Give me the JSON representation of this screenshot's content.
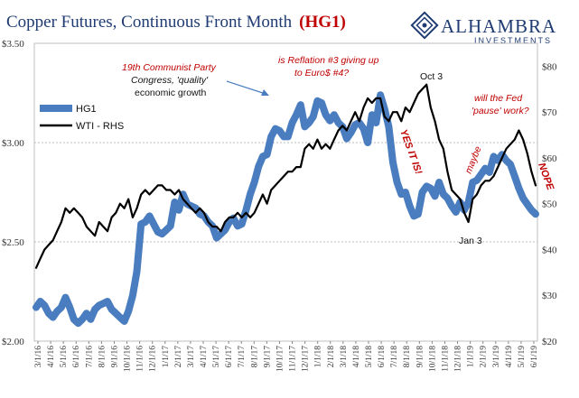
{
  "chart_data": {
    "type": "line",
    "title": "Copper Futures, Continuous Front Month",
    "title_code": "(HG1)",
    "left_axis": {
      "min": 2.0,
      "max": 3.5,
      "ticks": [
        "$2.00",
        "$2.50",
        "$3.00",
        "$3.50"
      ],
      "tick_values": [
        2.0,
        2.5,
        3.0,
        3.5
      ]
    },
    "right_axis": {
      "min": 20,
      "max": 85,
      "ticks": [
        "$20",
        "$30",
        "$40",
        "$50",
        "$60",
        "$70",
        "$80"
      ],
      "tick_values": [
        20,
        30,
        40,
        50,
        60,
        70,
        80
      ]
    },
    "x_ticks": [
      "3/1/16",
      "4/1/16",
      "5/1/16",
      "6/1/16",
      "7/1/16",
      "8/1/16",
      "9/1/16",
      "10/1/16",
      "11/1/16",
      "12/1/16",
      "1/1/17",
      "2/1/17",
      "3/1/17",
      "4/1/17",
      "5/1/17",
      "6/1/17",
      "7/1/17",
      "8/1/17",
      "9/1/17",
      "10/1/17",
      "11/1/17",
      "12/1/17",
      "1/1/18",
      "2/1/18",
      "3/1/18",
      "4/1/18",
      "5/1/18",
      "6/1/18",
      "7/1/18",
      "8/1/18",
      "9/1/18",
      "10/1/18",
      "11/1/18",
      "12/1/18",
      "1/1/19",
      "2/1/19",
      "3/1/19",
      "4/1/19",
      "5/1/19",
      "6/1/19"
    ],
    "gridlines": [
      2.5,
      3.0
    ],
    "legend_position": "left",
    "series": [
      {
        "name": "HG1",
        "axis": "left",
        "color": "#4a7dbf",
        "values": [
          2.17,
          2.2,
          2.18,
          2.14,
          2.12,
          2.15,
          2.17,
          2.22,
          2.17,
          2.11,
          2.09,
          2.11,
          2.14,
          2.11,
          2.16,
          2.18,
          2.19,
          2.2,
          2.16,
          2.14,
          2.12,
          2.1,
          2.15,
          2.23,
          2.35,
          2.59,
          2.6,
          2.63,
          2.59,
          2.55,
          2.54,
          2.56,
          2.58,
          2.7,
          2.66,
          2.74,
          2.69,
          2.68,
          2.67,
          2.64,
          2.63,
          2.6,
          2.58,
          2.52,
          2.54,
          2.56,
          2.6,
          2.62,
          2.58,
          2.59,
          2.66,
          2.74,
          2.8,
          2.88,
          2.93,
          2.94,
          3.03,
          3.07,
          3.06,
          3.03,
          3.03,
          3.1,
          3.14,
          3.19,
          3.08,
          3.1,
          3.13,
          3.21,
          3.2,
          3.14,
          3.11,
          3.14,
          3.1,
          3.08,
          3.02,
          3.05,
          3.09,
          3.1,
          3.07,
          3.0,
          3.14,
          3.1,
          3.24,
          3.17,
          3.08,
          2.9,
          2.8,
          2.74,
          2.75,
          2.68,
          2.63,
          2.64,
          2.75,
          2.78,
          2.77,
          2.73,
          2.8,
          2.74,
          2.72,
          2.68,
          2.65,
          2.7,
          2.66,
          2.7,
          2.8,
          2.81,
          2.84,
          2.87,
          2.85,
          2.93,
          2.91,
          2.94,
          2.91,
          2.89,
          2.83,
          2.77,
          2.72,
          2.69,
          2.66,
          2.64
        ]
      },
      {
        "name": "WTI - RHS",
        "axis": "right",
        "color": "#000000",
        "values": [
          36,
          38,
          40,
          41,
          42,
          44,
          46,
          49,
          48,
          49,
          48,
          47,
          45,
          44,
          43,
          46,
          45,
          44,
          47,
          48,
          50,
          49,
          51,
          47,
          49,
          52,
          53,
          52,
          53,
          54,
          54,
          53,
          53,
          52,
          53,
          51,
          50,
          49,
          48,
          49,
          48,
          46,
          45,
          45,
          44,
          46,
          47,
          47,
          48,
          47,
          48,
          47,
          48,
          50,
          52,
          50,
          53,
          54,
          55,
          56,
          57,
          57,
          58,
          58,
          62,
          63,
          62,
          64,
          62,
          63,
          62,
          64,
          66,
          67,
          66,
          68,
          70,
          68,
          71,
          73,
          72,
          73,
          73,
          69,
          68,
          70,
          70,
          68,
          71,
          70,
          72,
          74,
          75,
          76,
          71,
          68,
          64,
          62,
          57,
          53,
          52,
          51,
          48,
          46,
          51,
          52,
          54,
          55,
          55,
          56,
          58,
          60,
          62,
          63,
          64,
          66,
          64,
          61,
          57,
          54
        ]
      }
    ],
    "annotations": {
      "congress_line1": "19th Communist Party",
      "congress_line2": "Congress, 'quality'",
      "congress_line3": "economic growth",
      "reflation_line1": "is Reflation #3 giving up",
      "reflation_line2": "to Euro$ #4?",
      "oct3": "Oct 3",
      "yes_it_is": "YES IT IS!",
      "maybe": "maybe",
      "jan3": "Jan 3",
      "fed_line1": "will the Fed",
      "fed_line2": "'pause' work?",
      "nope": "NOPE"
    }
  },
  "logo": {
    "name": "ALHAMBRA",
    "sub": "INVESTMENTS"
  }
}
